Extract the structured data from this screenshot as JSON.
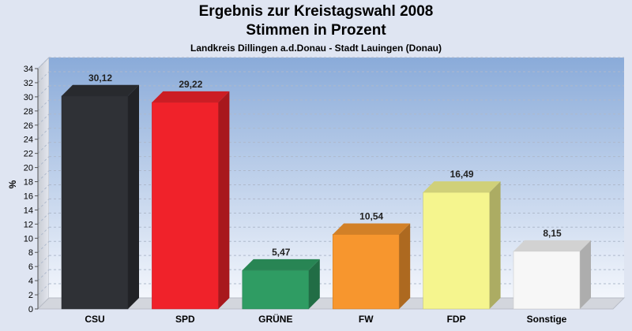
{
  "chart_data": {
    "type": "bar",
    "title": "Ergebnis zur Kreistagswahl 2008",
    "subtitle": "Stimmen in Prozent",
    "caption": "Landkreis Dillingen a.d.Donau - Stadt Lauingen (Donau)",
    "ylabel": "%",
    "ylim": [
      0,
      34
    ],
    "yticks": [
      0,
      2,
      4,
      6,
      8,
      10,
      12,
      14,
      16,
      18,
      20,
      22,
      24,
      26,
      28,
      30,
      32,
      34
    ],
    "grid": true,
    "categories": [
      "CSU",
      "SPD",
      "GRÜNE",
      "FW",
      "FDP",
      "Sonstige"
    ],
    "values": [
      30.12,
      29.22,
      5.47,
      10.54,
      16.49,
      8.15
    ],
    "value_labels": [
      "30,12",
      "29,22",
      "5,47",
      "10,54",
      "16,49",
      "8,15"
    ],
    "colors": [
      "#2f3136",
      "#f0222a",
      "#2f9c63",
      "#f7962e",
      "#f5f58e",
      "#f7f7f7"
    ]
  }
}
